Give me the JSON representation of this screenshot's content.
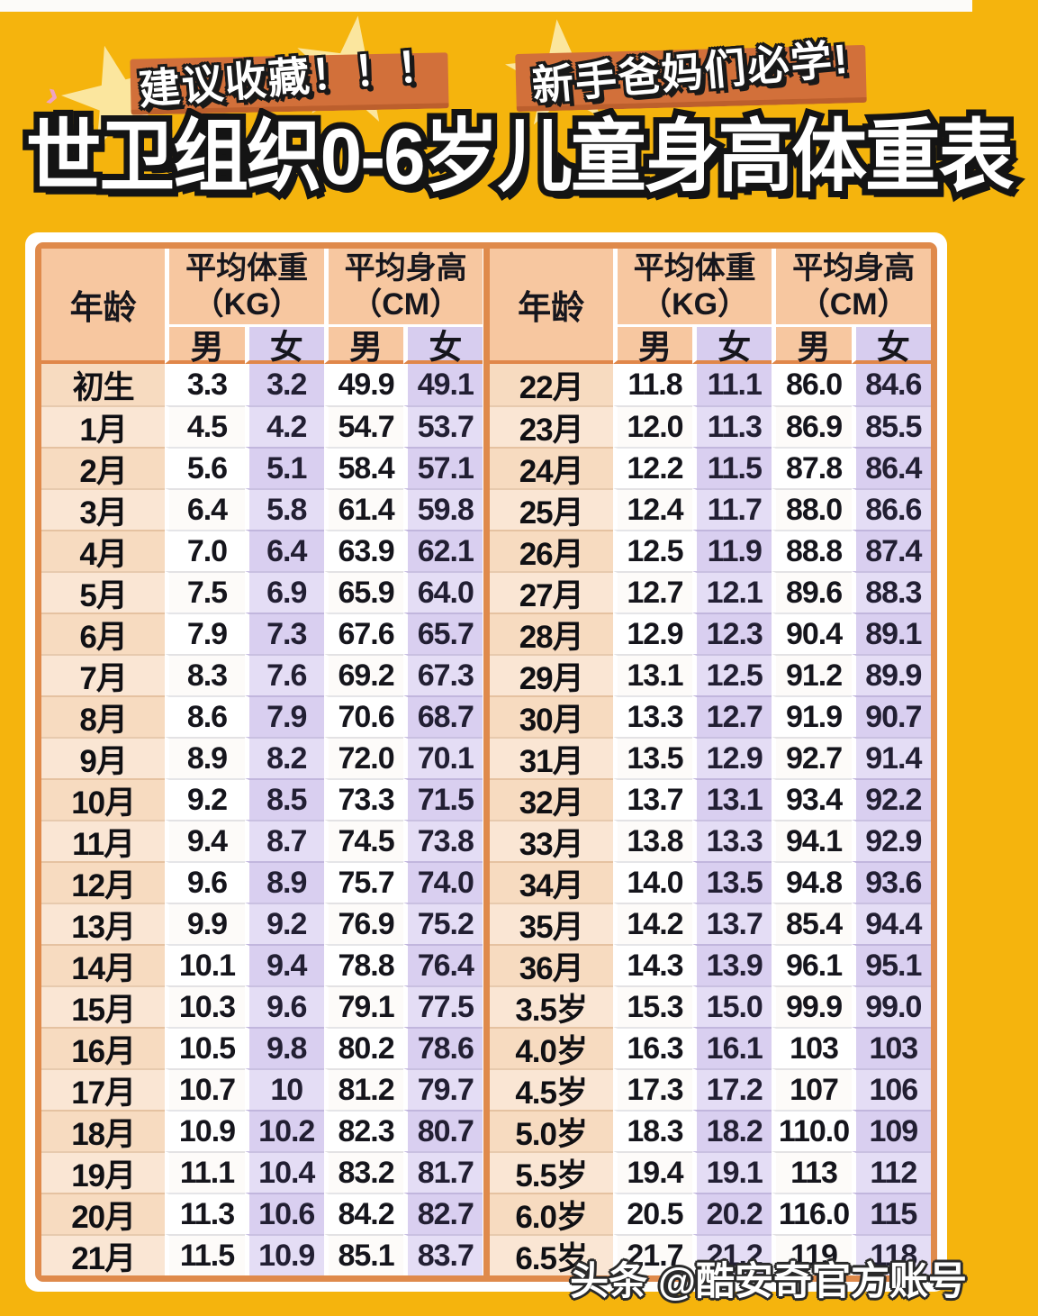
{
  "banners": {
    "left": "建议收藏！！！",
    "right": "新手爸妈们必学!"
  },
  "title": "世卫组织0-6岁儿童身高体重表",
  "watermark": "头条 @酷安奇官方账号",
  "decor": {
    "chevron_glyph": "›"
  },
  "table_header": {
    "age": "年龄",
    "weight_title": "平均体重",
    "weight_unit": "（KG）",
    "height_title": "平均身高",
    "height_unit": "（CM）",
    "male": "男",
    "female": "女"
  },
  "colors": {
    "background_yellow": "#F5B40D",
    "ribbon_orange": "#D2703A",
    "table_border_orange": "#DF8A4B",
    "header_peach": "#F7C7A0",
    "header_lavender": "#D7CDEF",
    "age_cell_peach": "#F7DBC0",
    "female_cell_lavender": "#D9CFF0",
    "male_cell_white": "#FFFFFF"
  },
  "chart_data": {
    "type": "table",
    "title": "世卫组织0-6岁儿童身高体重表",
    "columns": [
      "年龄",
      "平均体重(KG) 男",
      "平均体重(KG) 女",
      "平均身高(CM) 男",
      "平均身高(CM) 女"
    ],
    "rows_left": [
      [
        "初生",
        "3.3",
        "3.2",
        "49.9",
        "49.1"
      ],
      [
        "1月",
        "4.5",
        "4.2",
        "54.7",
        "53.7"
      ],
      [
        "2月",
        "5.6",
        "5.1",
        "58.4",
        "57.1"
      ],
      [
        "3月",
        "6.4",
        "5.8",
        "61.4",
        "59.8"
      ],
      [
        "4月",
        "7.0",
        "6.4",
        "63.9",
        "62.1"
      ],
      [
        "5月",
        "7.5",
        "6.9",
        "65.9",
        "64.0"
      ],
      [
        "6月",
        "7.9",
        "7.3",
        "67.6",
        "65.7"
      ],
      [
        "7月",
        "8.3",
        "7.6",
        "69.2",
        "67.3"
      ],
      [
        "8月",
        "8.6",
        "7.9",
        "70.6",
        "68.7"
      ],
      [
        "9月",
        "8.9",
        "8.2",
        "72.0",
        "70.1"
      ],
      [
        "10月",
        "9.2",
        "8.5",
        "73.3",
        "71.5"
      ],
      [
        "11月",
        "9.4",
        "8.7",
        "74.5",
        "73.8"
      ],
      [
        "12月",
        "9.6",
        "8.9",
        "75.7",
        "74.0"
      ],
      [
        "13月",
        "9.9",
        "9.2",
        "76.9",
        "75.2"
      ],
      [
        "14月",
        "10.1",
        "9.4",
        "78.8",
        "76.4"
      ],
      [
        "15月",
        "10.3",
        "9.6",
        "79.1",
        "77.5"
      ],
      [
        "16月",
        "10.5",
        "9.8",
        "80.2",
        "78.6"
      ],
      [
        "17月",
        "10.7",
        "10",
        "81.2",
        "79.7"
      ],
      [
        "18月",
        "10.9",
        "10.2",
        "82.3",
        "80.7"
      ],
      [
        "19月",
        "11.1",
        "10.4",
        "83.2",
        "81.7"
      ],
      [
        "20月",
        "11.3",
        "10.6",
        "84.2",
        "82.7"
      ],
      [
        "21月",
        "11.5",
        "10.9",
        "85.1",
        "83.7"
      ]
    ],
    "rows_right": [
      [
        "22月",
        "11.8",
        "11.1",
        "86.0",
        "84.6"
      ],
      [
        "23月",
        "12.0",
        "11.3",
        "86.9",
        "85.5"
      ],
      [
        "24月",
        "12.2",
        "11.5",
        "87.8",
        "86.4"
      ],
      [
        "25月",
        "12.4",
        "11.7",
        "88.0",
        "86.6"
      ],
      [
        "26月",
        "12.5",
        "11.9",
        "88.8",
        "87.4"
      ],
      [
        "27月",
        "12.7",
        "12.1",
        "89.6",
        "88.3"
      ],
      [
        "28月",
        "12.9",
        "12.3",
        "90.4",
        "89.1"
      ],
      [
        "29月",
        "13.1",
        "12.5",
        "91.2",
        "89.9"
      ],
      [
        "30月",
        "13.3",
        "12.7",
        "91.9",
        "90.7"
      ],
      [
        "31月",
        "13.5",
        "12.9",
        "92.7",
        "91.4"
      ],
      [
        "32月",
        "13.7",
        "13.1",
        "93.4",
        "92.2"
      ],
      [
        "33月",
        "13.8",
        "13.3",
        "94.1",
        "92.9"
      ],
      [
        "34月",
        "14.0",
        "13.5",
        "94.8",
        "93.6"
      ],
      [
        "35月",
        "14.2",
        "13.7",
        "85.4",
        "94.4"
      ],
      [
        "36月",
        "14.3",
        "13.9",
        "96.1",
        "95.1"
      ],
      [
        "3.5岁",
        "15.3",
        "15.0",
        "99.9",
        "99.0"
      ],
      [
        "4.0岁",
        "16.3",
        "16.1",
        "103",
        "103"
      ],
      [
        "4.5岁",
        "17.3",
        "17.2",
        "107",
        "106"
      ],
      [
        "5.0岁",
        "18.3",
        "18.2",
        "110.0",
        "109"
      ],
      [
        "5.5岁",
        "19.4",
        "19.1",
        "113",
        "112"
      ],
      [
        "6.0岁",
        "20.5",
        "20.2",
        "116.0",
        "115"
      ],
      [
        "6.5岁",
        "21.7",
        "21.2",
        "119",
        "118"
      ]
    ]
  }
}
